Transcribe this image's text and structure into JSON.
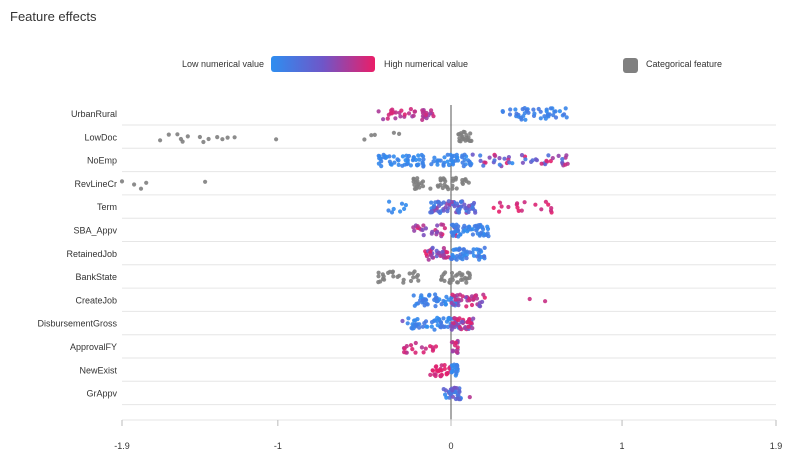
{
  "page_title": "Feature effects",
  "legend": {
    "low_label": "Low numerical value",
    "high_label": "High numerical value",
    "categorical_label": "Categorical feature",
    "low_color": "#2e8ef0",
    "mid_color": "#6f56c8",
    "high_color": "#ea1e68",
    "categorical_color": "#808080"
  },
  "chart_data": {
    "type": "scatter",
    "xlim": [
      -1.9,
      1.9
    ],
    "x_ticks": [
      "-1.9",
      "-1",
      "0",
      "1",
      "1.9"
    ],
    "x_tick_values": [
      -1.9,
      -1,
      0,
      1,
      1.9
    ],
    "grid": true,
    "features": [
      {
        "name": "UrbanRural",
        "kind": "numerical",
        "clusters": [
          {
            "min": -0.42,
            "max": -0.1,
            "n": 38,
            "color_low": 0.65,
            "color_high": 1.0
          },
          {
            "min": 0.3,
            "max": 0.68,
            "n": 45,
            "color_low": 0.0,
            "color_high": 0.2
          }
        ],
        "extra": []
      },
      {
        "name": "LowDoc",
        "kind": "categorical",
        "clusters": [
          {
            "min": 0.04,
            "max": 0.12,
            "n": 22,
            "color_low": 0,
            "color_high": 0
          }
        ],
        "extra": [
          -1.68,
          -1.63,
          -1.58,
          -1.56,
          -1.55,
          -1.52,
          -1.45,
          -1.43,
          -1.4,
          -1.35,
          -1.32,
          -1.29,
          -1.25,
          -1.01,
          -0.5,
          -0.46,
          -0.44,
          -0.33,
          -0.3
        ]
      },
      {
        "name": "NoEmp",
        "kind": "numerical",
        "clusters": [
          {
            "min": -0.42,
            "max": 0.12,
            "n": 95,
            "color_low": 0.0,
            "color_high": 0.15
          },
          {
            "min": 0.12,
            "max": 0.72,
            "n": 45,
            "color_low": 0.0,
            "color_high": 1.0
          }
        ],
        "extra": []
      },
      {
        "name": "RevLineCr",
        "kind": "categorical",
        "clusters": [
          {
            "min": -0.22,
            "max": 0.12,
            "n": 45,
            "color_low": 0,
            "color_high": 0
          }
        ],
        "extra": [
          -1.9,
          -1.83,
          -1.79,
          -1.76,
          -1.42
        ]
      },
      {
        "name": "Term",
        "kind": "numerical",
        "clusters": [
          {
            "min": -0.38,
            "max": -0.25,
            "n": 8,
            "color_low": 0.0,
            "color_high": 0.1
          },
          {
            "min": -0.12,
            "max": 0.15,
            "n": 75,
            "color_low": 0.0,
            "color_high": 0.7
          },
          {
            "min": 0.22,
            "max": 0.6,
            "n": 18,
            "color_low": 0.8,
            "color_high": 1.0
          }
        ],
        "extra": []
      },
      {
        "name": "SBA_Appv",
        "kind": "numerical",
        "clusters": [
          {
            "min": -0.22,
            "max": 0.04,
            "n": 30,
            "color_low": 0.55,
            "color_high": 1.0
          },
          {
            "min": 0.0,
            "max": 0.22,
            "n": 55,
            "color_low": 0.0,
            "color_high": 0.2
          }
        ],
        "extra": []
      },
      {
        "name": "RetainedJob",
        "kind": "numerical",
        "clusters": [
          {
            "min": -0.16,
            "max": 0.0,
            "n": 35,
            "color_low": 0.4,
            "color_high": 1.0
          },
          {
            "min": 0.0,
            "max": 0.2,
            "n": 45,
            "color_low": 0.0,
            "color_high": 0.25
          }
        ],
        "extra": []
      },
      {
        "name": "BankState",
        "kind": "categorical",
        "clusters": [
          {
            "min": -0.42,
            "max": -0.18,
            "n": 25,
            "color_low": 0,
            "color_high": 0
          },
          {
            "min": -0.06,
            "max": 0.12,
            "n": 30,
            "color_low": 0,
            "color_high": 0
          }
        ],
        "extra": []
      },
      {
        "name": "CreateJob",
        "kind": "numerical",
        "clusters": [
          {
            "min": -0.22,
            "max": 0.04,
            "n": 45,
            "color_low": 0.0,
            "color_high": 0.2
          },
          {
            "min": 0.0,
            "max": 0.2,
            "n": 35,
            "color_low": 0.5,
            "color_high": 1.0
          }
        ],
        "extra": [
          0.46,
          0.55
        ]
      },
      {
        "name": "DisbursementGross",
        "kind": "numerical",
        "clusters": [
          {
            "min": -0.25,
            "max": 0.05,
            "n": 55,
            "color_low": 0.0,
            "color_high": 0.2
          },
          {
            "min": 0.0,
            "max": 0.13,
            "n": 40,
            "color_low": 0.5,
            "color_high": 1.0
          }
        ],
        "extra": [
          -0.28
        ]
      },
      {
        "name": "ApprovalFY",
        "kind": "numerical",
        "clusters": [
          {
            "min": -0.28,
            "max": -0.08,
            "n": 18,
            "color_low": 0.75,
            "color_high": 1.0
          },
          {
            "min": 0.0,
            "max": 0.04,
            "n": 14,
            "color_low": 0.6,
            "color_high": 1.0
          }
        ],
        "extra": []
      },
      {
        "name": "NewExist",
        "kind": "numerical",
        "clusters": [
          {
            "min": -0.12,
            "max": 0.0,
            "n": 30,
            "color_low": 0.85,
            "color_high": 1.0
          },
          {
            "min": 0.0,
            "max": 0.04,
            "n": 20,
            "color_low": 0.0,
            "color_high": 0.15
          }
        ],
        "extra": []
      },
      {
        "name": "GrAppv",
        "kind": "numerical",
        "clusters": [
          {
            "min": -0.05,
            "max": 0.06,
            "n": 40,
            "color_low": 0.0,
            "color_high": 0.55
          }
        ],
        "extra": [
          0.11
        ]
      }
    ]
  }
}
